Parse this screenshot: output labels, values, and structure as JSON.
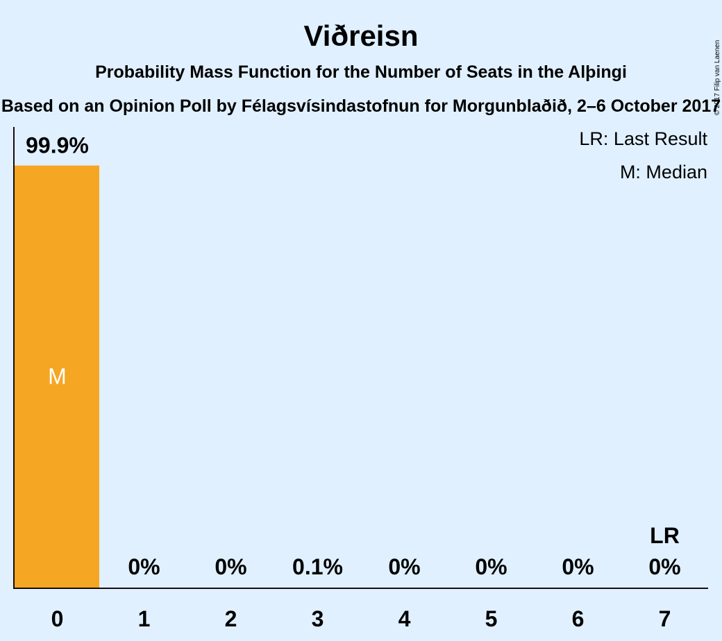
{
  "chart_data": {
    "type": "bar",
    "title": "Viðreisn",
    "subtitle": "Probability Mass Function for the Number of Seats in the Alþingi",
    "source": "Based on an Opinion Poll by Félagsvísindastofnun for Morgunblaðið, 2–6 October 2017",
    "credit": "© 2017 Filip van Laenen",
    "categories": [
      "0",
      "1",
      "2",
      "3",
      "4",
      "5",
      "6",
      "7"
    ],
    "values": [
      99.9,
      0,
      0,
      0.1,
      0,
      0,
      0,
      0
    ],
    "value_labels": [
      "99.9%",
      "0%",
      "0%",
      "0.1%",
      "0%",
      "0%",
      "0%",
      "0%"
    ],
    "ylim": [
      0,
      100
    ],
    "grid": false,
    "bar_color": "#f5a623",
    "median_index": 0,
    "median_marker": "M",
    "last_result_index": 7,
    "last_result_marker": "LR",
    "legend": {
      "position": "top-right",
      "items": [
        "LR: Last Result",
        "M: Median"
      ]
    }
  }
}
